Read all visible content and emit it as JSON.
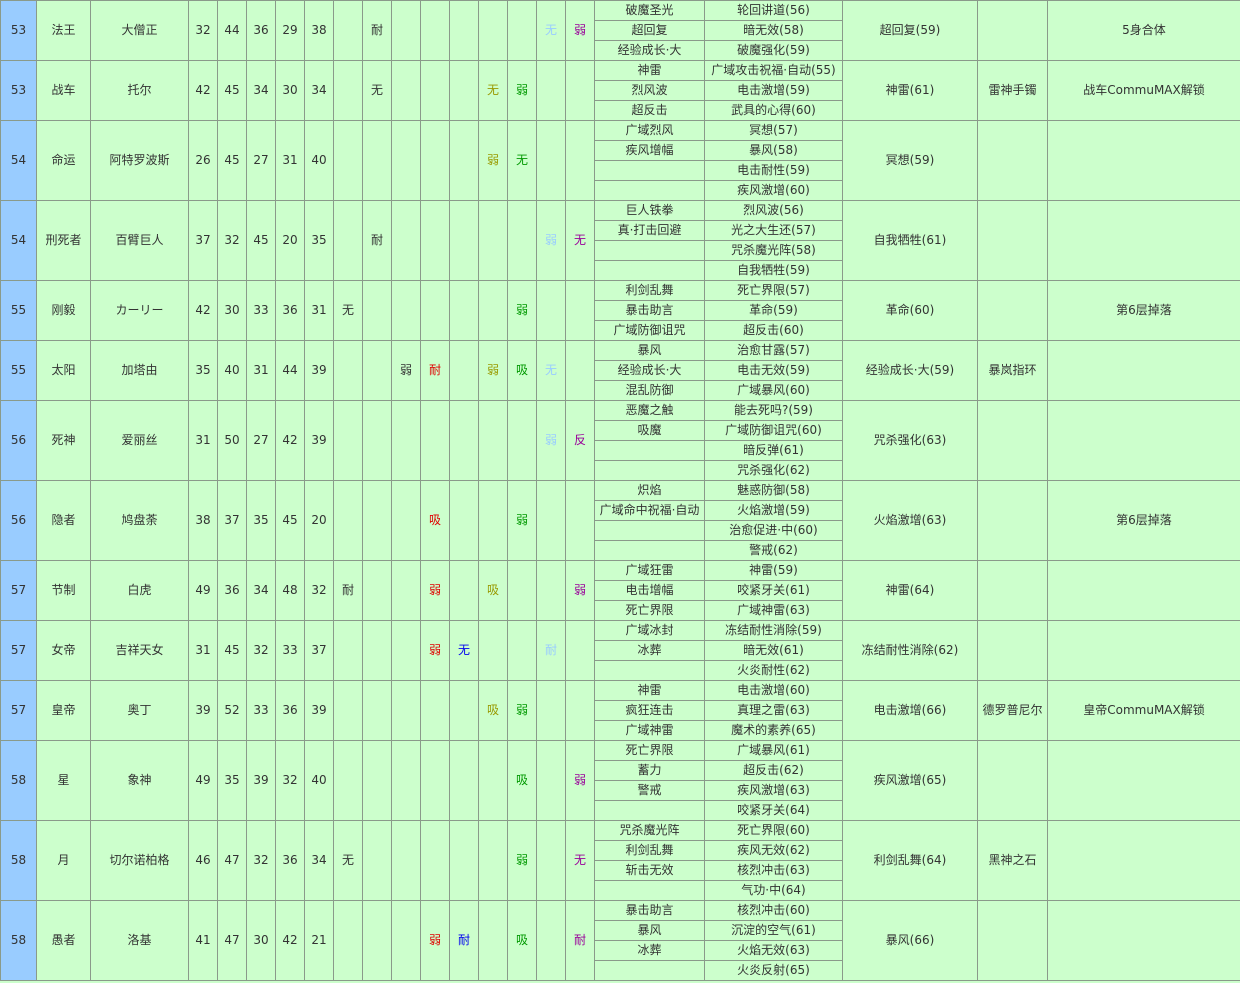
{
  "table": {
    "rows": [
      {
        "level": 53,
        "arcana": "法王",
        "name": "大僧正",
        "stats": [
          32,
          44,
          36,
          29,
          38
        ],
        "resist": [
          null,
          "耐",
          null,
          null,
          null,
          null,
          null,
          "无",
          "弱"
        ],
        "skills": [
          "破魔圣光",
          "超回复",
          "经验成长·大"
        ],
        "learned": [
          "轮回讲道(56)",
          "暗无效(58)",
          "破魔强化(59)"
        ],
        "inherit": "超回复(59)",
        "item": null,
        "note": "5身合体"
      },
      {
        "level": 53,
        "arcana": "战车",
        "name": "托尔",
        "stats": [
          42,
          45,
          34,
          30,
          34
        ],
        "resist": [
          null,
          "无",
          null,
          null,
          null,
          "无",
          "弱",
          null,
          null
        ],
        "skills": [
          "神雷",
          "烈风波",
          "超反击"
        ],
        "learned": [
          "广域攻击祝福·自动(55)",
          "电击激增(59)",
          "武具的心得(60)"
        ],
        "inherit": "神雷(61)",
        "item": "雷神手镯",
        "note": "战车CommuMAX解锁"
      },
      {
        "level": 54,
        "arcana": "命运",
        "name": "阿特罗波斯",
        "stats": [
          26,
          45,
          27,
          31,
          40
        ],
        "resist": [
          null,
          null,
          null,
          null,
          null,
          "弱",
          "无",
          null,
          null
        ],
        "skills": [
          "广域烈风",
          "疾风增幅"
        ],
        "learned": [
          "冥想(57)",
          "暴风(58)",
          "电击耐性(59)",
          "疾风激增(60)"
        ],
        "inherit": "冥想(59)",
        "item": null,
        "note": null
      },
      {
        "level": 54,
        "arcana": "刑死者",
        "name": "百臂巨人",
        "stats": [
          37,
          32,
          45,
          20,
          35
        ],
        "resist": [
          null,
          "耐",
          null,
          null,
          null,
          null,
          null,
          "弱",
          "无"
        ],
        "skills": [
          "巨人铁拳",
          "真·打击回避"
        ],
        "learned": [
          "烈风波(56)",
          "光之大生还(57)",
          "咒杀魔光阵(58)",
          "自我牺牲(59)"
        ],
        "inherit": "自我牺牲(61)",
        "item": null,
        "note": null
      },
      {
        "level": 55,
        "arcana": "刚毅",
        "name": "カーリー",
        "stats": [
          42,
          30,
          33,
          36,
          31
        ],
        "resist": [
          "无",
          null,
          null,
          null,
          null,
          null,
          "弱",
          null,
          null
        ],
        "skills": [
          "利剑乱舞",
          "暴击助言",
          "广域防御诅咒"
        ],
        "learned": [
          "死亡界限(57)",
          "革命(59)",
          "超反击(60)"
        ],
        "inherit": "革命(60)",
        "item": null,
        "note": "第6层掉落"
      },
      {
        "level": 55,
        "arcana": "太阳",
        "name": "加塔由",
        "stats": [
          35,
          40,
          31,
          44,
          39
        ],
        "resist": [
          null,
          null,
          "弱",
          "耐",
          null,
          "弱",
          "吸",
          "无",
          null
        ],
        "skills": [
          "暴风",
          "经验成长·大",
          "混乱防御"
        ],
        "learned": [
          "治愈甘露(57)",
          "电击无效(59)",
          "广域暴风(60)"
        ],
        "inherit": "经验成长·大(59)",
        "item": "暴岚指环",
        "note": null
      },
      {
        "level": 56,
        "arcana": "死神",
        "name": "爱丽丝",
        "stats": [
          31,
          50,
          27,
          42,
          39
        ],
        "resist": [
          null,
          null,
          null,
          null,
          null,
          null,
          null,
          "弱",
          "反"
        ],
        "skills": [
          "恶魔之触",
          "吸魔"
        ],
        "learned": [
          "能去死吗?(59)",
          "广域防御诅咒(60)",
          "暗反弹(61)",
          "咒杀强化(62)"
        ],
        "inherit": "咒杀强化(63)",
        "item": null,
        "note": null
      },
      {
        "level": 56,
        "arcana": "隐者",
        "name": "鸠盘荼",
        "stats": [
          38,
          37,
          35,
          45,
          20
        ],
        "resist": [
          null,
          null,
          null,
          "吸",
          null,
          null,
          "弱",
          null,
          null
        ],
        "skills": [
          "炽焰",
          "广域命中祝福·自动"
        ],
        "learned": [
          "魅惑防御(58)",
          "火焰激增(59)",
          "治愈促进·中(60)",
          "警戒(62)"
        ],
        "inherit": "火焰激增(63)",
        "item": null,
        "note": "第6层掉落"
      },
      {
        "level": 57,
        "arcana": "节制",
        "name": "白虎",
        "stats": [
          49,
          36,
          34,
          48,
          32
        ],
        "resist": [
          "耐",
          null,
          null,
          "弱",
          null,
          "吸",
          null,
          null,
          "弱"
        ],
        "skills": [
          "广域狂雷",
          "电击增幅",
          "死亡界限"
        ],
        "learned": [
          "神雷(59)",
          "咬紧牙关(61)",
          "广域神雷(63)"
        ],
        "inherit": "神雷(64)",
        "item": null,
        "note": null
      },
      {
        "level": 57,
        "arcana": "女帝",
        "name": "吉祥天女",
        "stats": [
          31,
          45,
          32,
          33,
          37
        ],
        "resist": [
          null,
          null,
          null,
          "弱",
          "无",
          null,
          null,
          "耐",
          null
        ],
        "skills": [
          "广域冰封",
          "冰葬"
        ],
        "learned": [
          "冻结耐性消除(59)",
          "暗无效(61)",
          "火炎耐性(62)"
        ],
        "inherit": "冻结耐性消除(62)",
        "item": null,
        "note": null
      },
      {
        "level": 57,
        "arcana": "皇帝",
        "name": "奥丁",
        "stats": [
          39,
          52,
          33,
          36,
          39
        ],
        "resist": [
          null,
          null,
          null,
          null,
          null,
          "吸",
          "弱",
          null,
          null
        ],
        "skills": [
          "神雷",
          "疯狂连击",
          "广域神雷"
        ],
        "learned": [
          "电击激增(60)",
          "真理之雷(63)",
          "魔术的素养(65)"
        ],
        "inherit": "电击激增(66)",
        "item": "德罗普尼尔",
        "note": "皇帝CommuMAX解锁"
      },
      {
        "level": 58,
        "arcana": "星",
        "name": "象神",
        "stats": [
          49,
          35,
          39,
          32,
          40
        ],
        "resist": [
          null,
          null,
          null,
          null,
          null,
          null,
          "吸",
          null,
          "弱"
        ],
        "skills": [
          "死亡界限",
          "蓄力",
          "警戒"
        ],
        "learned": [
          "广域暴风(61)",
          "超反击(62)",
          "疾风激增(63)",
          "咬紧牙关(64)"
        ],
        "inherit": "疾风激增(65)",
        "item": null,
        "note": null
      },
      {
        "level": 58,
        "arcana": "月",
        "name": "切尔诺柏格",
        "stats": [
          46,
          47,
          32,
          36,
          34
        ],
        "resist": [
          "无",
          null,
          null,
          null,
          null,
          null,
          "弱",
          null,
          "无"
        ],
        "skills": [
          "咒杀魔光阵",
          "利剑乱舞",
          "斩击无效"
        ],
        "learned": [
          "死亡界限(60)",
          "疾风无效(62)",
          "核烈冲击(63)",
          "气功·中(64)"
        ],
        "inherit": "利剑乱舞(64)",
        "item": "黑神之石",
        "note": null
      },
      {
        "level": 58,
        "arcana": "愚者",
        "name": "洛基",
        "stats": [
          41,
          47,
          30,
          42,
          21
        ],
        "resist": [
          null,
          null,
          null,
          "弱",
          "耐",
          null,
          "吸",
          null,
          "耐"
        ],
        "skills": [
          "暴击助言",
          "暴风",
          "冰葬"
        ],
        "learned": [
          "核烈冲击(60)",
          "沉淀的空气(61)",
          "火焰无效(63)",
          "火炎反射(65)"
        ],
        "inherit": "暴风(66)",
        "item": null,
        "note": null
      }
    ]
  }
}
